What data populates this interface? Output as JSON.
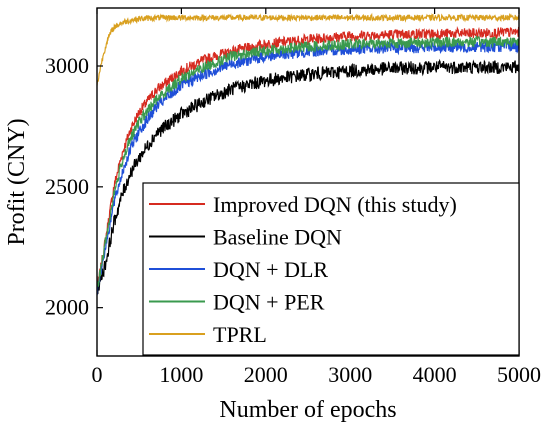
{
  "chart_data": {
    "type": "line",
    "title": "",
    "xlabel": "Number of epochs",
    "ylabel": "Profit (CNY)",
    "xlim": [
      0,
      5000
    ],
    "ylim": [
      1800,
      3240
    ],
    "xticks": [
      0,
      1000,
      2000,
      3000,
      4000,
      5000
    ],
    "yticks": [
      2000,
      2500,
      3000
    ],
    "grid": false,
    "legend_position": "lower-right",
    "series": [
      {
        "name": "Improved DQN (this study)",
        "color": "#d62b20",
        "noise": 22,
        "x": [
          0,
          100,
          200,
          300,
          400,
          500,
          700,
          1000,
          1300,
          1600,
          2000,
          2500,
          3000,
          3500,
          4000,
          4500,
          5000
        ],
        "y": [
          2070,
          2280,
          2500,
          2640,
          2740,
          2810,
          2900,
          2980,
          3030,
          3060,
          3090,
          3110,
          3125,
          3130,
          3133,
          3135,
          3140
        ]
      },
      {
        "name": "Baseline DQN",
        "color": "#000000",
        "noise": 28,
        "x": [
          0,
          100,
          200,
          300,
          400,
          500,
          700,
          1000,
          1300,
          1600,
          2000,
          2500,
          3000,
          3500,
          4000,
          4500,
          5000
        ],
        "y": [
          2070,
          2180,
          2350,
          2470,
          2560,
          2620,
          2720,
          2800,
          2860,
          2905,
          2940,
          2965,
          2980,
          2990,
          2995,
          2995,
          2995
        ]
      },
      {
        "name": "DQN + DLR",
        "color": "#1f4fd8",
        "noise": 24,
        "x": [
          0,
          100,
          200,
          300,
          400,
          500,
          700,
          1000,
          1300,
          1600,
          2000,
          2500,
          3000,
          3500,
          4000,
          4500,
          5000
        ],
        "y": [
          2070,
          2250,
          2430,
          2560,
          2660,
          2730,
          2830,
          2920,
          2970,
          3010,
          3040,
          3060,
          3070,
          3075,
          3078,
          3080,
          3082
        ]
      },
      {
        "name": "DQN + PER",
        "color": "#3a9a4e",
        "noise": 22,
        "x": [
          0,
          100,
          200,
          300,
          400,
          500,
          700,
          1000,
          1300,
          1600,
          2000,
          2500,
          3000,
          3500,
          4000,
          4500,
          5000
        ],
        "y": [
          2070,
          2270,
          2470,
          2610,
          2700,
          2770,
          2860,
          2950,
          3000,
          3040,
          3065,
          3080,
          3090,
          3095,
          3098,
          3100,
          3102
        ]
      },
      {
        "name": "TPRL",
        "color": "#d9a01f",
        "noise": 12,
        "x": [
          0,
          50,
          100,
          150,
          200,
          300,
          400,
          500,
          600,
          800,
          1000,
          1500,
          2000,
          3000,
          4000,
          5000
        ],
        "y": [
          2920,
          3010,
          3080,
          3130,
          3160,
          3180,
          3190,
          3195,
          3198,
          3200,
          3200,
          3200,
          3200,
          3200,
          3200,
          3200
        ]
      }
    ]
  }
}
